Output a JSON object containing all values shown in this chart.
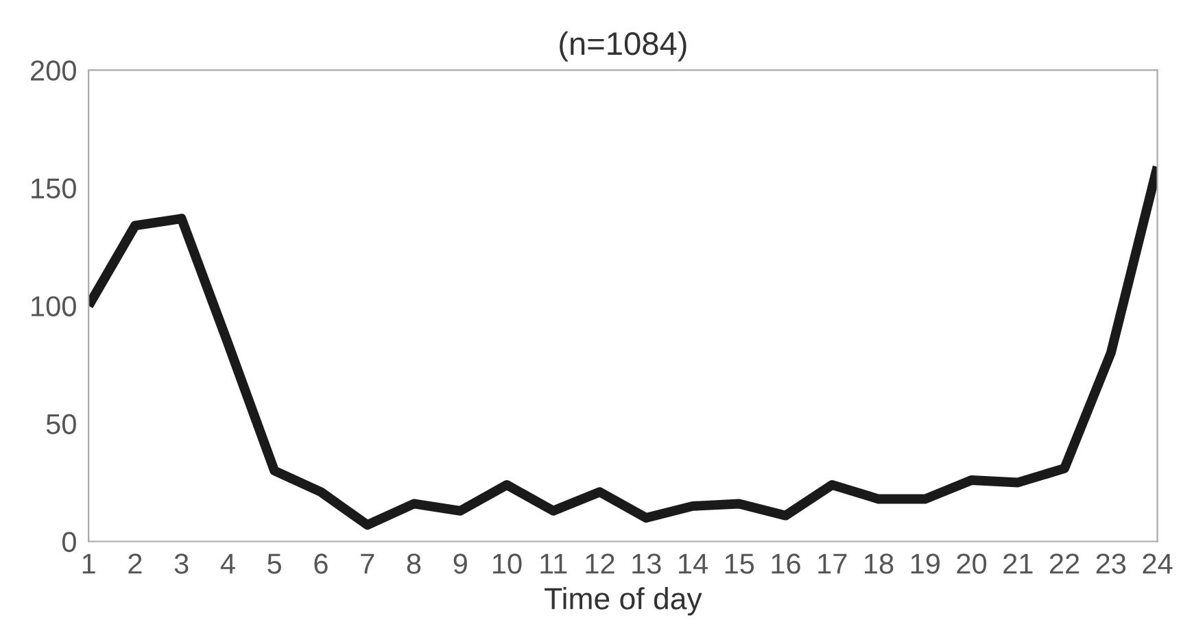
{
  "chart_data": {
    "type": "line",
    "title": "(n=1084)",
    "xlabel": "Time of day",
    "x": [
      1,
      2,
      3,
      4,
      5,
      6,
      7,
      8,
      9,
      10,
      11,
      12,
      13,
      14,
      15,
      16,
      17,
      18,
      19,
      20,
      21,
      22,
      23,
      24
    ],
    "series": [
      {
        "color": "#1a1a1a",
        "values": [
          100,
          134,
          137,
          84,
          30,
          21,
          7,
          16,
          13,
          24,
          13,
          21,
          10,
          15,
          16,
          11,
          24,
          18,
          18,
          26,
          25,
          31,
          80,
          159
        ]
      }
    ],
    "xlim": [
      1,
      24
    ],
    "xticks": [
      1,
      2,
      3,
      4,
      5,
      6,
      7,
      8,
      9,
      10,
      11,
      12,
      13,
      14,
      15,
      16,
      17,
      18,
      19,
      20,
      21,
      22,
      23,
      24
    ],
    "ylim": [
      0,
      200
    ],
    "yticks": [
      0,
      50,
      100,
      150,
      200
    ],
    "grid": false,
    "marker": "none",
    "line_style": "solid"
  }
}
